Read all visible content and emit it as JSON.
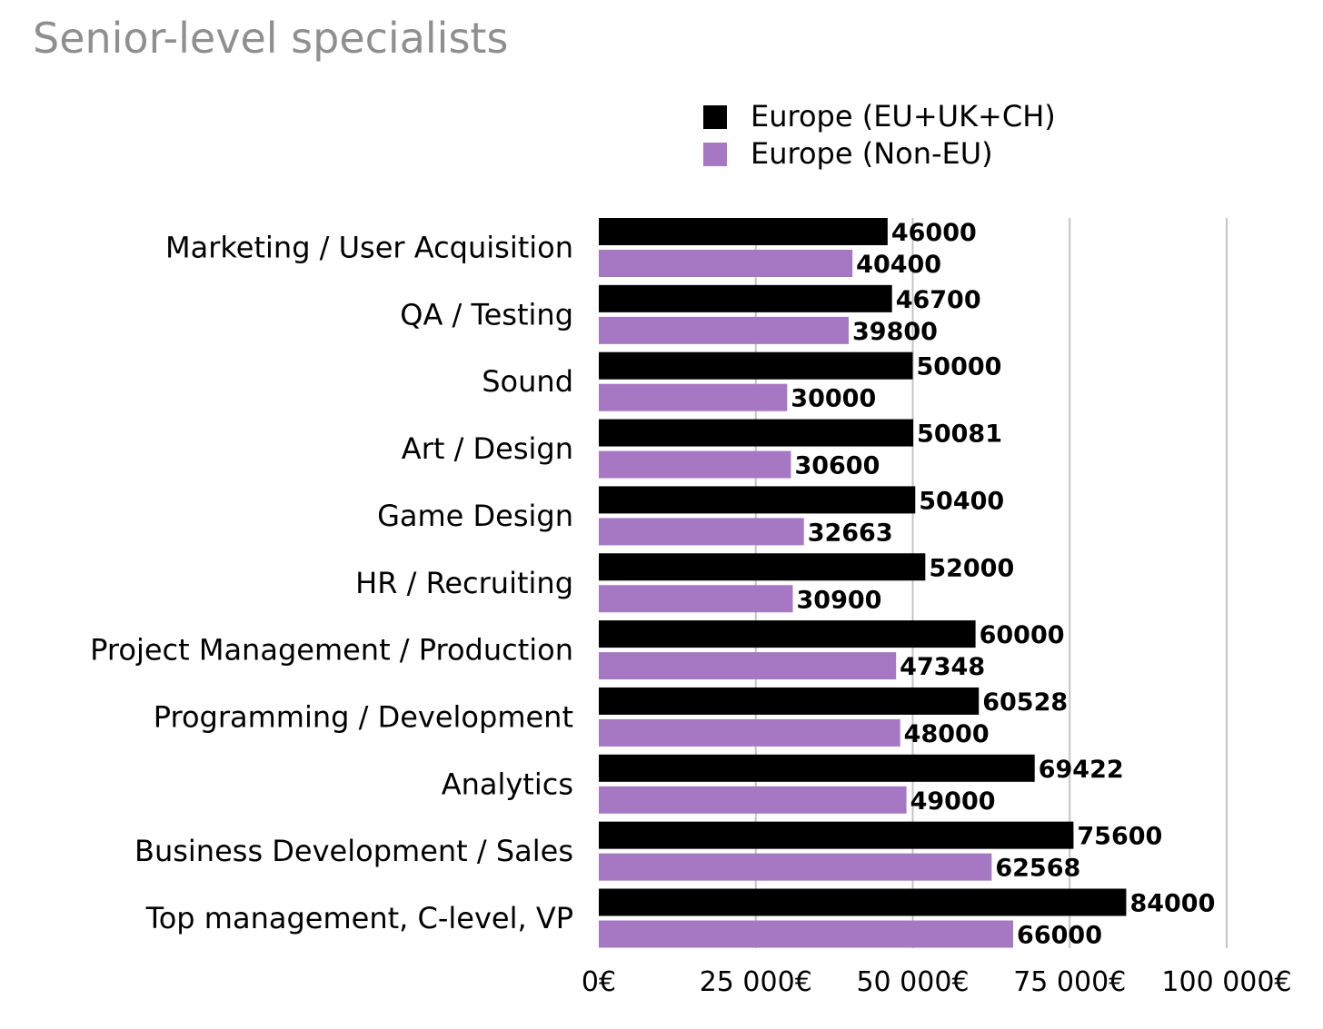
{
  "chart_data": {
    "type": "bar",
    "orientation": "horizontal",
    "title": "Senior-level specialists",
    "categories": [
      "Marketing / User Acquisition",
      "QA / Testing",
      "Sound",
      "Art / Design",
      "Game Design",
      "HR / Recruiting",
      "Project Management / Production",
      "Programming / Development",
      "Analytics",
      "Business Development / Sales",
      "Top management, C-level, VP"
    ],
    "series": [
      {
        "name": "Europe (EU+UK+CH)",
        "color": "#000000",
        "values": [
          46000,
          46700,
          50000,
          50081,
          50400,
          52000,
          60000,
          60528,
          69422,
          75600,
          84000
        ]
      },
      {
        "name": "Europe (Non-EU)",
        "color": "#a678c4",
        "values": [
          40400,
          39800,
          30000,
          30600,
          32663,
          30900,
          47348,
          48000,
          49000,
          62568,
          66000
        ]
      }
    ],
    "xlim": [
      0,
      100000
    ],
    "x_ticks": [
      0,
      25000,
      50000,
      75000,
      100000
    ],
    "x_tick_labels": [
      "0€",
      "25 000€",
      "50 000€",
      "75 000€",
      "100 000€"
    ],
    "grid": "vertical",
    "legend_position": "top-right",
    "data_labels": true
  }
}
